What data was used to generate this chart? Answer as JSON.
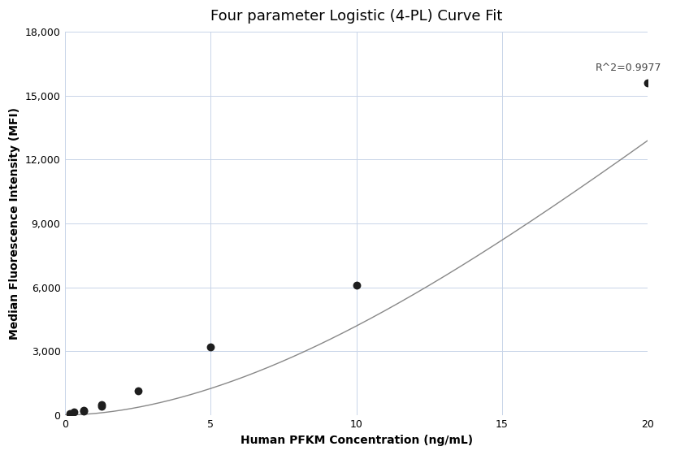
{
  "title": "Four parameter Logistic (4-PL) Curve Fit",
  "xlabel": "Human PFKM Concentration (ng/mL)",
  "ylabel": "Median Fluorescence Intensity (MFI)",
  "scatter_x": [
    0.156,
    0.313,
    0.625,
    0.625,
    1.25,
    1.25,
    2.5,
    5.0,
    10.0,
    20.0
  ],
  "scatter_y": [
    55,
    130,
    190,
    230,
    400,
    480,
    1150,
    3200,
    6100,
    15600
  ],
  "r_squared": "R^2=0.9977",
  "xlim": [
    0,
    20
  ],
  "ylim": [
    0,
    18000
  ],
  "yticks": [
    0,
    3000,
    6000,
    9000,
    12000,
    15000,
    18000
  ],
  "xticks": [
    0,
    5,
    10,
    15,
    20
  ],
  "scatter_color": "#1e1e1e",
  "line_color": "#888888",
  "grid_color": "#c8d4e8",
  "background_color": "#ffffff",
  "title_fontsize": 13,
  "label_fontsize": 10,
  "tick_fontsize": 9,
  "annotation_fontsize": 9,
  "figsize": [
    8.32,
    5.6
  ],
  "dpi": 100
}
